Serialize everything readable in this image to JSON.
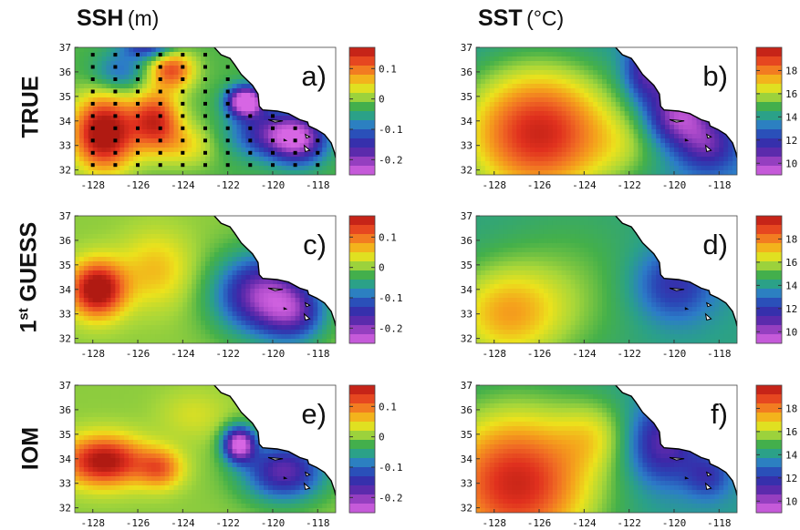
{
  "columns": [
    {
      "main": "SSH",
      "unit": "(m)"
    },
    {
      "main": "SST",
      "unit": "(°C)"
    }
  ],
  "rows": [
    {
      "label": "TRUE"
    },
    {
      "label": "GUESS",
      "prefix": "1",
      "sup": "st"
    },
    {
      "label": "IOM"
    }
  ],
  "chart_data": [
    {
      "type": "heatmap",
      "panel": "a)",
      "variable": "SSH",
      "row": "TRUE",
      "xticks": [
        "-128",
        "-126",
        "-124",
        "-122",
        "-120",
        "-118"
      ],
      "yticks": [
        "32",
        "33",
        "34",
        "35",
        "36",
        "37"
      ],
      "xlim": [
        -128.8,
        -117.2
      ],
      "ylim": [
        31.8,
        37
      ],
      "clim": [
        -0.25,
        0.17
      ],
      "colorbar_ticks": [
        "0.1",
        "0",
        "-0.1",
        "-0.2"
      ],
      "colorbar_values": [
        0.1,
        0,
        -0.1,
        -0.2
      ],
      "observation_grid": true
    },
    {
      "type": "heatmap",
      "panel": "b)",
      "variable": "SST",
      "row": "TRUE",
      "xticks": [
        "-128",
        "-126",
        "-124",
        "-122",
        "-120",
        "-118"
      ],
      "yticks": [
        "32",
        "33",
        "34",
        "35",
        "36",
        "37"
      ],
      "xlim": [
        -128.8,
        -117.2
      ],
      "ylim": [
        31.8,
        37
      ],
      "clim": [
        9,
        20
      ],
      "colorbar_ticks": [
        "18",
        "16",
        "14",
        "12",
        "10"
      ],
      "colorbar_values": [
        18,
        16,
        14,
        12,
        10
      ]
    },
    {
      "type": "heatmap",
      "panel": "c)",
      "variable": "SSH",
      "row": "1st GUESS",
      "xticks": [
        "-128",
        "-126",
        "-124",
        "-122",
        "-120",
        "-118"
      ],
      "yticks": [
        "32",
        "33",
        "34",
        "35",
        "36",
        "37"
      ],
      "xlim": [
        -128.8,
        -117.2
      ],
      "ylim": [
        31.8,
        37
      ],
      "clim": [
        -0.25,
        0.17
      ],
      "colorbar_ticks": [
        "0.1",
        "0",
        "-0.1",
        "-0.2"
      ],
      "colorbar_values": [
        0.1,
        0,
        -0.1,
        -0.2
      ]
    },
    {
      "type": "heatmap",
      "panel": "d)",
      "variable": "SST",
      "row": "1st GUESS",
      "xticks": [
        "-128",
        "-126",
        "-124",
        "-122",
        "-120",
        "-118"
      ],
      "yticks": [
        "32",
        "33",
        "34",
        "35",
        "36",
        "37"
      ],
      "xlim": [
        -128.8,
        -117.2
      ],
      "ylim": [
        31.8,
        37
      ],
      "clim": [
        9,
        20
      ],
      "colorbar_ticks": [
        "18",
        "16",
        "14",
        "12",
        "10"
      ],
      "colorbar_values": [
        18,
        16,
        14,
        12,
        10
      ]
    },
    {
      "type": "heatmap",
      "panel": "e)",
      "variable": "SSH",
      "row": "IOM",
      "xticks": [
        "-128",
        "-126",
        "-124",
        "-122",
        "-120",
        "-118"
      ],
      "yticks": [
        "32",
        "33",
        "34",
        "35",
        "36",
        "37"
      ],
      "xlim": [
        -128.8,
        -117.2
      ],
      "ylim": [
        31.8,
        37
      ],
      "clim": [
        -0.25,
        0.17
      ],
      "colorbar_ticks": [
        "0.1",
        "0",
        "-0.1",
        "-0.2"
      ],
      "colorbar_values": [
        0.1,
        0,
        -0.1,
        -0.2
      ]
    },
    {
      "type": "heatmap",
      "panel": "f)",
      "variable": "SST",
      "row": "IOM",
      "xticks": [
        "-128",
        "-126",
        "-124",
        "-122",
        "-120",
        "-118"
      ],
      "yticks": [
        "32",
        "33",
        "34",
        "35",
        "36",
        "37"
      ],
      "xlim": [
        -128.8,
        -117.2
      ],
      "ylim": [
        31.8,
        37
      ],
      "clim": [
        9,
        20
      ],
      "colorbar_ticks": [
        "18",
        "16",
        "14",
        "12",
        "10"
      ],
      "colorbar_values": [
        18,
        16,
        14,
        12,
        10
      ]
    }
  ],
  "colors": {
    "colormap": [
      "#b01a12",
      "#e0301e",
      "#f06a24",
      "#f5a31c",
      "#ece21c",
      "#a6d63a",
      "#44b04a",
      "#2aa08a",
      "#2c7cc8",
      "#2a47b6",
      "#3a28a8",
      "#6a2cae",
      "#b04ccc",
      "#d766e4"
    ],
    "land": "#ffffff",
    "coast": "#000000",
    "obs_marker": "#000000"
  }
}
